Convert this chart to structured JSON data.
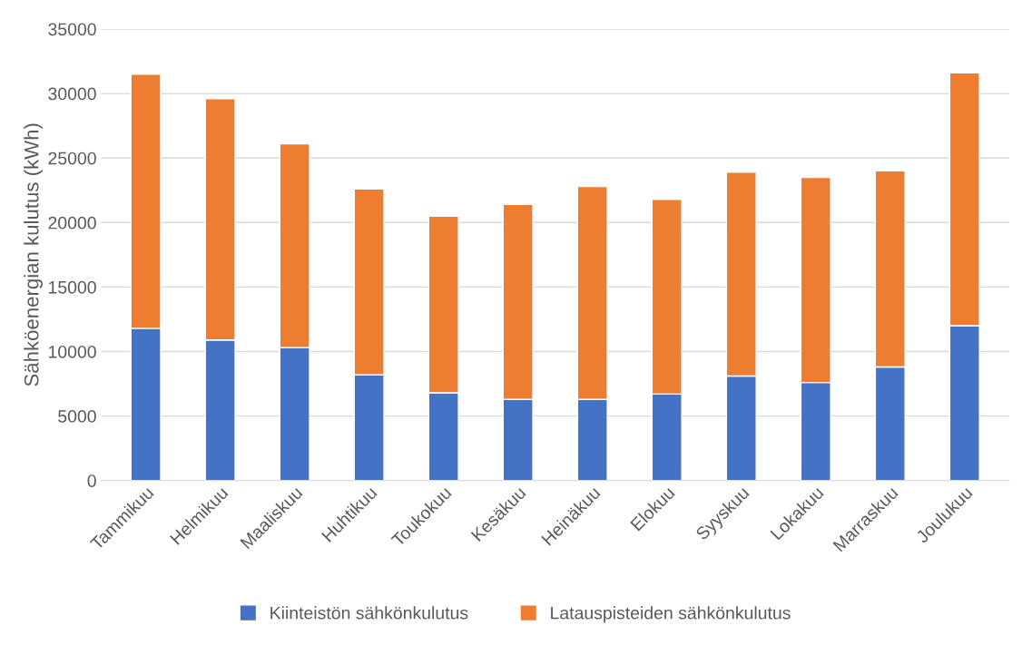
{
  "chart_data": {
    "type": "bar",
    "stacked": true,
    "ylabel": "Sähköenergian kulutus (kWh)",
    "categories": [
      "Tammikuu",
      "Helmikuu",
      "Maaliskuu",
      "Huhtikuu",
      "Toukokuu",
      "Kesäkuu",
      "Heinäkuu",
      "Elokuu",
      "Syyskuu",
      "Lokakuu",
      "Marraskuu",
      "Joulukuu"
    ],
    "series": [
      {
        "name": "Kiinteistön sähkönkulutus",
        "color": "#4472c4",
        "values": [
          11800,
          10900,
          10300,
          8200,
          6800,
          6300,
          6300,
          6700,
          8100,
          7600,
          8800,
          12000
        ]
      },
      {
        "name": "Latauspisteiden sähkönkulutus",
        "color": "#ed7d31",
        "values": [
          19700,
          18700,
          15800,
          14400,
          13700,
          15100,
          16500,
          15100,
          15800,
          15900,
          15200,
          19600
        ]
      }
    ],
    "ylim": [
      0,
      35000
    ],
    "yticks": [
      0,
      5000,
      10000,
      15000,
      20000,
      25000,
      30000,
      35000
    ],
    "grid": "y",
    "legend": "bottom"
  }
}
